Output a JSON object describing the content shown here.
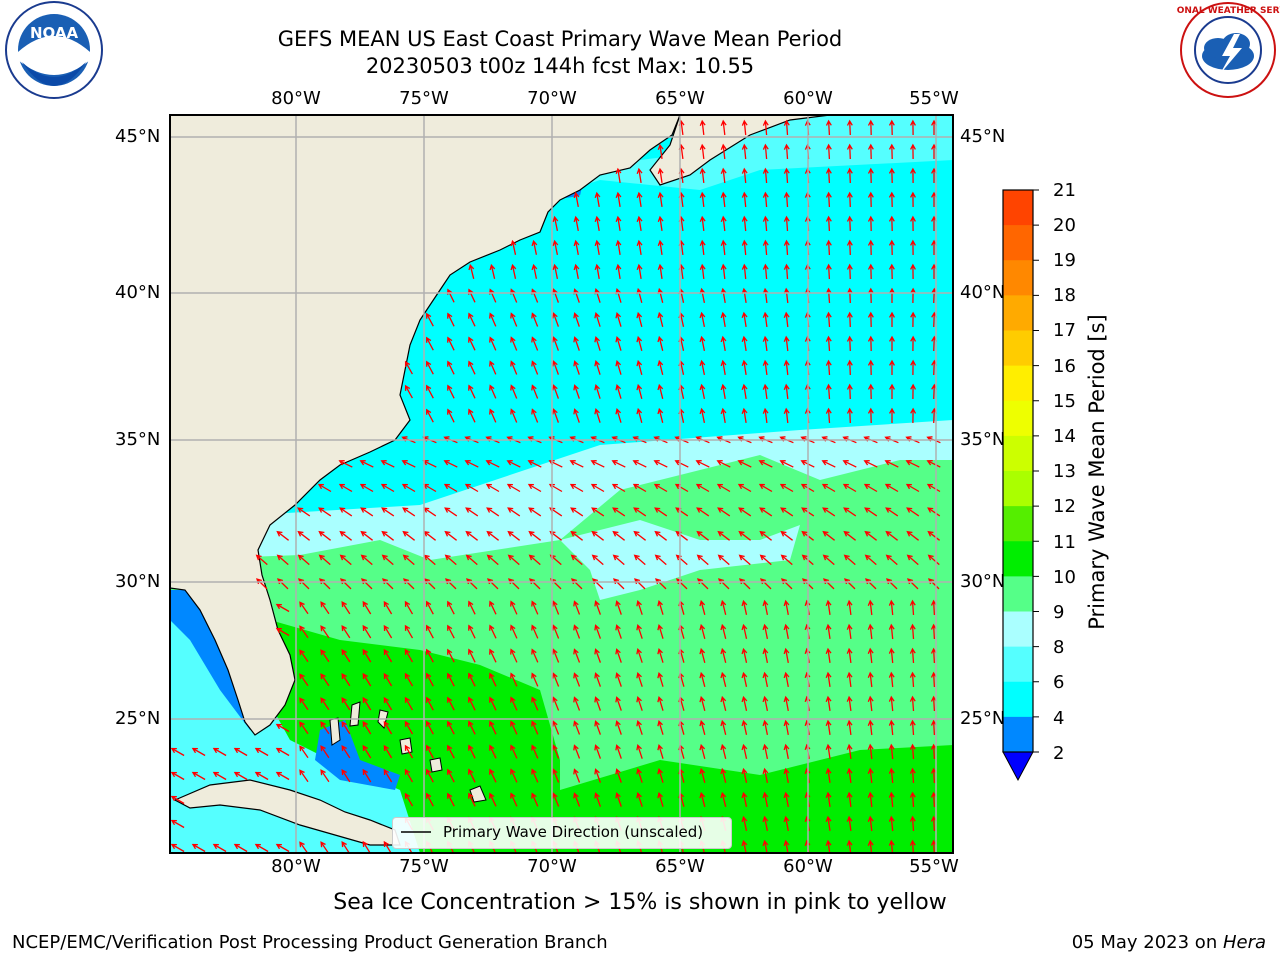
{
  "title": {
    "line1": "GEFS MEAN US East Coast Primary Wave Mean Period",
    "line2": "20230503 t00z 144h fcst   Max: 10.55"
  },
  "axes": {
    "lon_labels": [
      "80°W",
      "75°W",
      "70°W",
      "65°W",
      "60°W",
      "55°W"
    ],
    "lat_labels": [
      "45°N",
      "40°N",
      "35°N",
      "30°N",
      "25°N"
    ],
    "gridlines": true
  },
  "colorbar": {
    "label": "Primary Wave Mean Period [s]",
    "ticks": [
      "21",
      "20",
      "19",
      "18",
      "17",
      "16",
      "15",
      "14",
      "13",
      "12",
      "11",
      "10",
      "9",
      "8",
      "6",
      "4",
      "2"
    ],
    "colors": [
      "#ff0000",
      "#ff2200",
      "#ff4400",
      "#ff6600",
      "#ff8800",
      "#ffaa00",
      "#ffcc00",
      "#ffee00",
      "#eeff00",
      "#ccff00",
      "#aaff00",
      "#55ee00",
      "#00ee00",
      "#55ff88",
      "#aaffff",
      "#55ffff",
      "#00ffff",
      "#0088ff",
      "#0000ff"
    ],
    "extend": "min"
  },
  "legend": {
    "label": "Primary Wave Direction (unscaled)",
    "placement": "bottom-center"
  },
  "notes": {
    "sea_ice": "Sea Ice Concentration > 15% is shown in pink to yellow",
    "credit": "NCEP/EMC/Verification Post Processing Product Generation Branch",
    "date_prefix": "05 May 2023 on ",
    "date_machine": "Hera"
  },
  "logos": {
    "left": {
      "text": "NOAA",
      "icon": "noaa-logo"
    },
    "right": {
      "text": "NATIONAL WEATHER SERVICE",
      "icon": "nws-logo"
    }
  },
  "map": {
    "land_color": "#efecdc",
    "arrow_color": "#ff0000"
  }
}
